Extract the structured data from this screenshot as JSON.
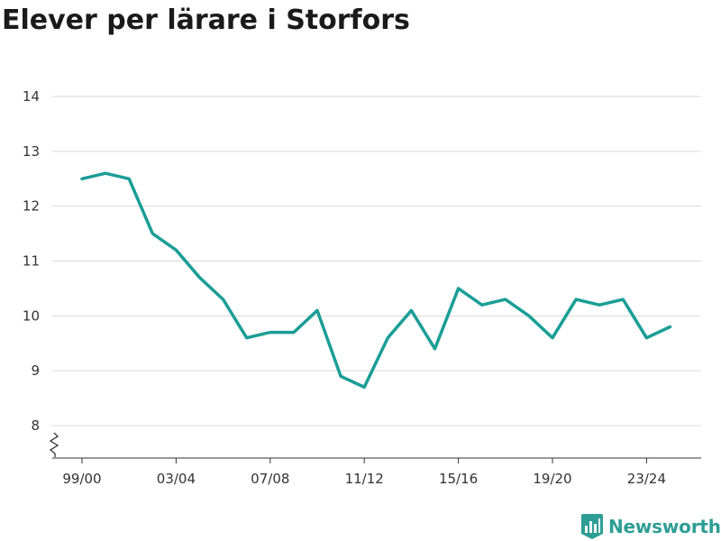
{
  "title": "Elever per lärare i Storfors",
  "brand": {
    "name": "Newsworthy",
    "icon": "newsworthy-logo-icon",
    "color": "#2e9e95"
  },
  "chart_data": {
    "type": "line",
    "title": "Elever per lärare i Storfors",
    "xlabel": "",
    "ylabel": "",
    "categories": [
      "99/00",
      "00/01",
      "01/02",
      "02/03",
      "03/04",
      "04/05",
      "05/06",
      "06/07",
      "07/08",
      "08/09",
      "09/10",
      "10/11",
      "11/12",
      "12/13",
      "13/14",
      "14/15",
      "15/16",
      "16/17",
      "17/18",
      "18/19",
      "19/20",
      "20/21",
      "21/22",
      "22/23",
      "23/24",
      "24/25"
    ],
    "x_tick_labels": [
      "99/00",
      "03/04",
      "07/08",
      "11/12",
      "15/16",
      "19/20",
      "23/24"
    ],
    "y_ticks": [
      8,
      9,
      10,
      11,
      12,
      13,
      14
    ],
    "ylim": [
      7.45,
      14
    ],
    "axis_break": true,
    "grid": true,
    "legend": "none",
    "line_color": "#1a9e96",
    "series": [
      {
        "values": [
          12.5,
          12.6,
          12.5,
          11.5,
          11.2,
          10.7,
          10.3,
          9.6,
          9.7,
          9.7,
          10.1,
          8.9,
          8.7,
          9.6,
          10.1,
          9.4,
          10.5,
          10.2,
          10.3,
          10.0,
          9.6,
          10.3,
          10.2,
          10.3,
          9.6,
          9.8
        ]
      }
    ]
  }
}
